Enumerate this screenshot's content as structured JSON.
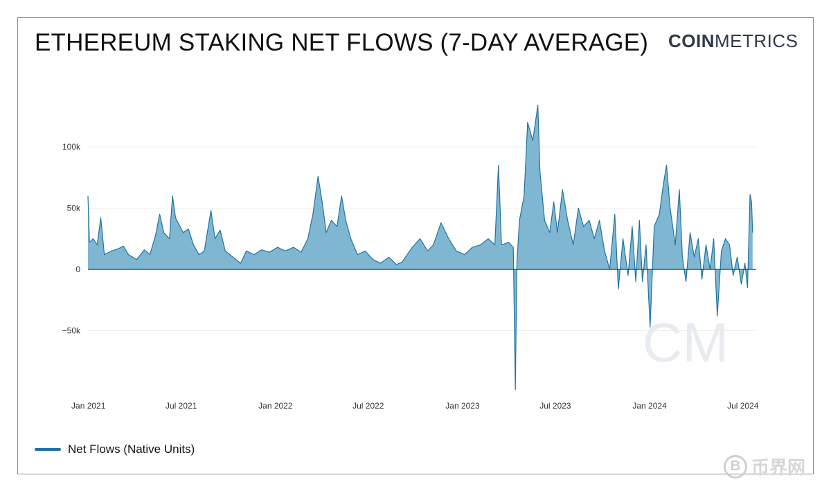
{
  "header": {
    "title": "ETHEREUM STAKING NET FLOWS (7-DAY AVERAGE)",
    "brand_bold": "COIN",
    "brand_light": "METRICS",
    "watermark_logo": "CM"
  },
  "legend": {
    "label": "Net Flows (Native Units)"
  },
  "corner_watermark": {
    "coin_symbol": "B",
    "text": "币界网"
  },
  "colors": {
    "line": "#2272a0",
    "fill": "#7fb7d3",
    "grid": "#ececec",
    "zero": "#1a3a4a",
    "frame": "#8a8a8a"
  },
  "chart_data": {
    "type": "area",
    "title": "ETHEREUM STAKING NET FLOWS (7-DAY AVERAGE)",
    "xlabel": "",
    "ylabel": "",
    "ylim": [
      -100000,
      135000
    ],
    "yticks": [
      100000,
      50000,
      0,
      -50000
    ],
    "ytick_labels": [
      "100k",
      "50k",
      "0",
      "−50k"
    ],
    "xlim": [
      "2020-12-31",
      "2024-07-27"
    ],
    "xticks": [
      "2021-01-01",
      "2021-07-01",
      "2022-01-01",
      "2022-07-01",
      "2023-01-01",
      "2023-07-01",
      "2024-01-01",
      "2024-07-01"
    ],
    "xtick_labels": [
      "Jan 2021",
      "Jul 2021",
      "Jan 2022",
      "Jul 2022",
      "Jan 2023",
      "Jul 2023",
      "Jan 2024",
      "Jul 2024"
    ],
    "grid": true,
    "legend_position": "bottom-left",
    "series": [
      {
        "name": "Net Flows (Native Units)",
        "points": [
          [
            "2020-12-31",
            60000
          ],
          [
            "2021-01-03",
            22000
          ],
          [
            "2021-01-10",
            25000
          ],
          [
            "2021-01-18",
            20000
          ],
          [
            "2021-01-25",
            42000
          ],
          [
            "2021-02-01",
            12000
          ],
          [
            "2021-02-15",
            15000
          ],
          [
            "2021-03-01",
            17000
          ],
          [
            "2021-03-10",
            19000
          ],
          [
            "2021-03-20",
            12000
          ],
          [
            "2021-04-05",
            8000
          ],
          [
            "2021-04-20",
            16000
          ],
          [
            "2021-05-01",
            12000
          ],
          [
            "2021-05-12",
            28000
          ],
          [
            "2021-05-20",
            45000
          ],
          [
            "2021-05-28",
            30000
          ],
          [
            "2021-06-08",
            25000
          ],
          [
            "2021-06-14",
            60000
          ],
          [
            "2021-06-20",
            42000
          ],
          [
            "2021-07-05",
            30000
          ],
          [
            "2021-07-15",
            33000
          ],
          [
            "2021-07-25",
            20000
          ],
          [
            "2021-08-05",
            12000
          ],
          [
            "2021-08-15",
            15000
          ],
          [
            "2021-08-28",
            48000
          ],
          [
            "2021-09-05",
            25000
          ],
          [
            "2021-09-15",
            32000
          ],
          [
            "2021-09-25",
            15000
          ],
          [
            "2021-10-10",
            10000
          ],
          [
            "2021-10-25",
            5000
          ],
          [
            "2021-11-05",
            15000
          ],
          [
            "2021-11-20",
            12000
          ],
          [
            "2021-12-05",
            16000
          ],
          [
            "2021-12-20",
            14000
          ],
          [
            "2022-01-05",
            18000
          ],
          [
            "2022-01-20",
            15000
          ],
          [
            "2022-02-05",
            18000
          ],
          [
            "2022-02-20",
            14000
          ],
          [
            "2022-03-05",
            25000
          ],
          [
            "2022-03-15",
            45000
          ],
          [
            "2022-03-25",
            76000
          ],
          [
            "2022-04-02",
            55000
          ],
          [
            "2022-04-10",
            30000
          ],
          [
            "2022-04-20",
            40000
          ],
          [
            "2022-05-01",
            35000
          ],
          [
            "2022-05-10",
            60000
          ],
          [
            "2022-05-18",
            40000
          ],
          [
            "2022-05-28",
            25000
          ],
          [
            "2022-06-10",
            12000
          ],
          [
            "2022-06-25",
            15000
          ],
          [
            "2022-07-10",
            8000
          ],
          [
            "2022-07-25",
            5000
          ],
          [
            "2022-08-10",
            10000
          ],
          [
            "2022-08-25",
            4000
          ],
          [
            "2022-09-05",
            6000
          ],
          [
            "2022-09-15",
            12000
          ],
          [
            "2022-09-25",
            18000
          ],
          [
            "2022-10-10",
            25000
          ],
          [
            "2022-10-25",
            15000
          ],
          [
            "2022-11-05",
            20000
          ],
          [
            "2022-11-20",
            38000
          ],
          [
            "2022-12-05",
            25000
          ],
          [
            "2022-12-20",
            15000
          ],
          [
            "2023-01-05",
            12000
          ],
          [
            "2023-01-20",
            18000
          ],
          [
            "2023-02-05",
            20000
          ],
          [
            "2023-02-20",
            25000
          ],
          [
            "2023-03-05",
            20000
          ],
          [
            "2023-03-12",
            85000
          ],
          [
            "2023-03-18",
            20000
          ],
          [
            "2023-04-01",
            22000
          ],
          [
            "2023-04-10",
            18000
          ],
          [
            "2023-04-14",
            -98000
          ],
          [
            "2023-04-17",
            5000
          ],
          [
            "2023-04-22",
            40000
          ],
          [
            "2023-05-01",
            60000
          ],
          [
            "2023-05-08",
            120000
          ],
          [
            "2023-05-18",
            105000
          ],
          [
            "2023-05-28",
            134000
          ],
          [
            "2023-06-01",
            80000
          ],
          [
            "2023-06-10",
            40000
          ],
          [
            "2023-06-20",
            30000
          ],
          [
            "2023-06-28",
            55000
          ],
          [
            "2023-07-05",
            30000
          ],
          [
            "2023-07-15",
            65000
          ],
          [
            "2023-07-25",
            40000
          ],
          [
            "2023-08-05",
            20000
          ],
          [
            "2023-08-15",
            50000
          ],
          [
            "2023-08-25",
            35000
          ],
          [
            "2023-09-05",
            40000
          ],
          [
            "2023-09-15",
            25000
          ],
          [
            "2023-09-25",
            40000
          ],
          [
            "2023-10-05",
            15000
          ],
          [
            "2023-10-15",
            0
          ],
          [
            "2023-10-25",
            45000
          ],
          [
            "2023-11-01",
            -16000
          ],
          [
            "2023-11-10",
            25000
          ],
          [
            "2023-11-20",
            -5000
          ],
          [
            "2023-11-28",
            35000
          ],
          [
            "2023-12-05",
            -10000
          ],
          [
            "2023-12-12",
            40000
          ],
          [
            "2023-12-18",
            -10000
          ],
          [
            "2023-12-25",
            20000
          ],
          [
            "2024-01-02",
            -47000
          ],
          [
            "2024-01-10",
            35000
          ],
          [
            "2024-01-20",
            45000
          ],
          [
            "2024-01-28",
            70000
          ],
          [
            "2024-02-03",
            85000
          ],
          [
            "2024-02-10",
            50000
          ],
          [
            "2024-02-20",
            20000
          ],
          [
            "2024-02-28",
            65000
          ],
          [
            "2024-03-05",
            10000
          ],
          [
            "2024-03-12",
            -10000
          ],
          [
            "2024-03-20",
            30000
          ],
          [
            "2024-03-28",
            10000
          ],
          [
            "2024-04-05",
            25000
          ],
          [
            "2024-04-12",
            -8000
          ],
          [
            "2024-04-20",
            20000
          ],
          [
            "2024-04-28",
            0
          ],
          [
            "2024-05-05",
            25000
          ],
          [
            "2024-05-12",
            -38000
          ],
          [
            "2024-05-20",
            15000
          ],
          [
            "2024-05-28",
            25000
          ],
          [
            "2024-06-05",
            20000
          ],
          [
            "2024-06-12",
            -5000
          ],
          [
            "2024-06-20",
            10000
          ],
          [
            "2024-06-28",
            -12000
          ],
          [
            "2024-07-05",
            5000
          ],
          [
            "2024-07-10",
            -15000
          ],
          [
            "2024-07-15",
            61000
          ],
          [
            "2024-07-18",
            55000
          ],
          [
            "2024-07-20",
            30000
          ]
        ]
      }
    ]
  }
}
